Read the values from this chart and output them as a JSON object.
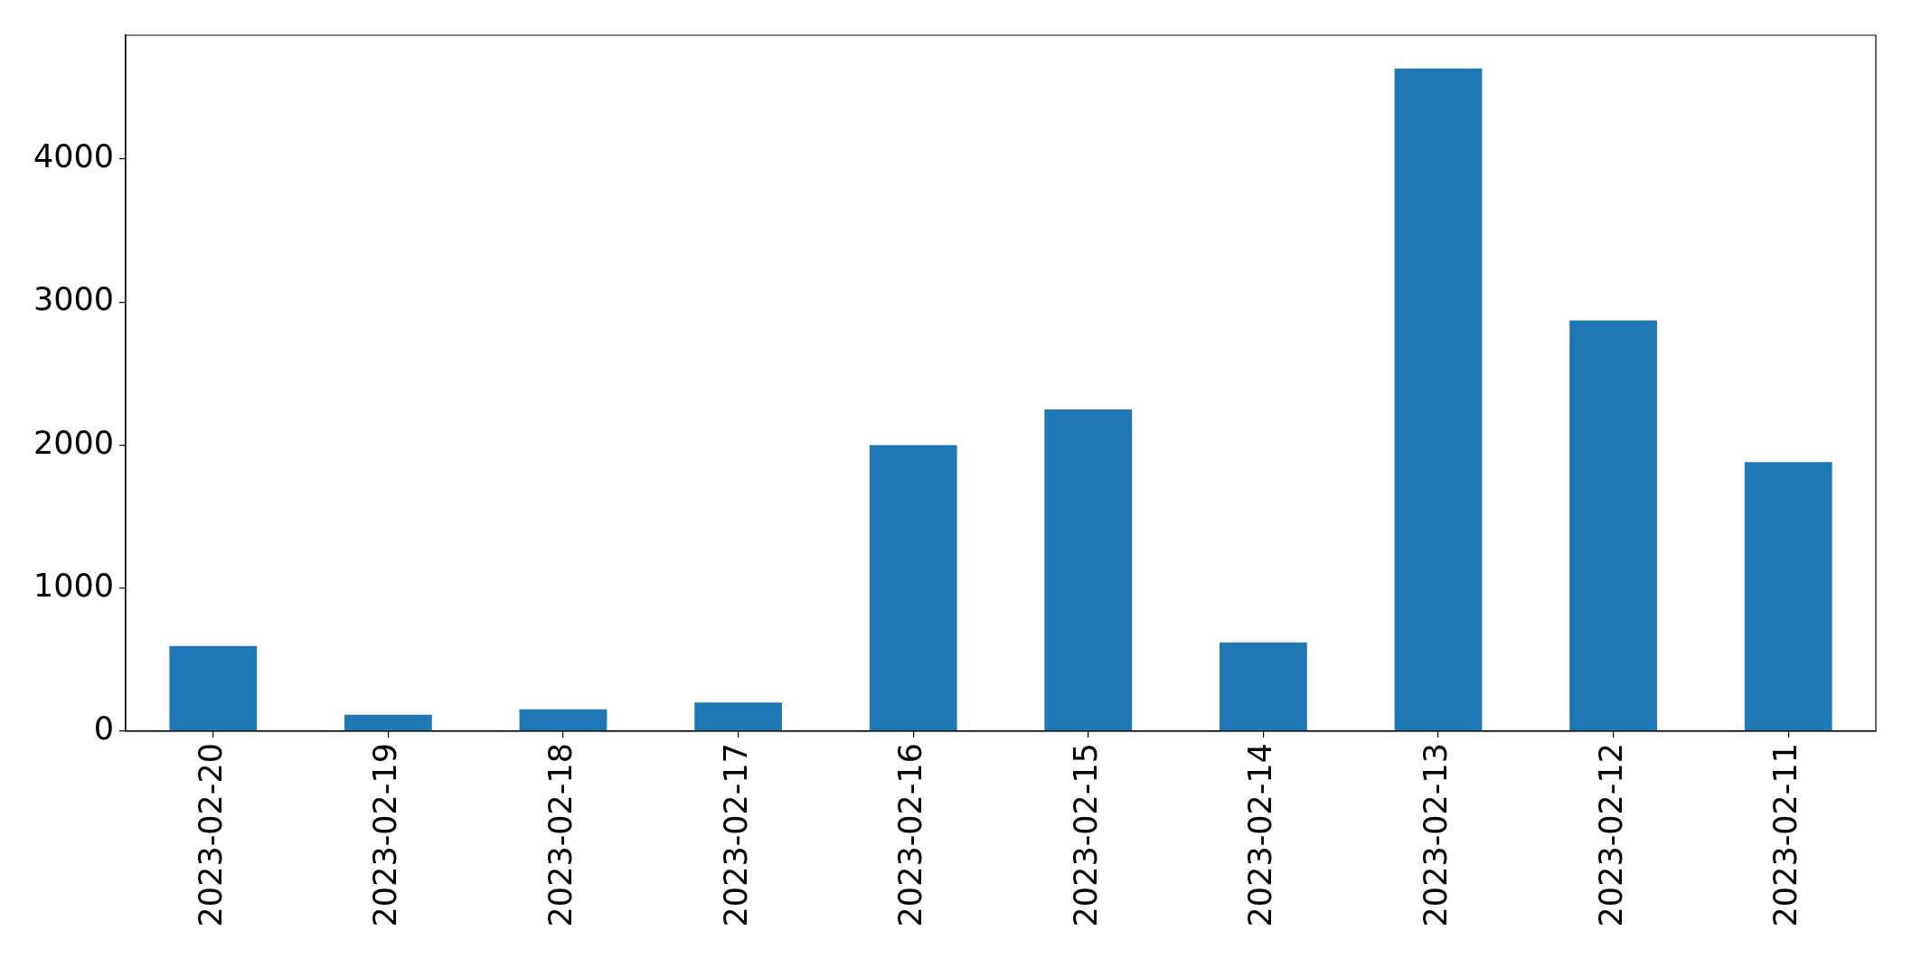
{
  "chart_data": {
    "type": "bar",
    "categories": [
      "2023-02-20",
      "2023-02-19",
      "2023-02-18",
      "2023-02-17",
      "2023-02-16",
      "2023-02-15",
      "2023-02-14",
      "2023-02-13",
      "2023-02-12",
      "2023-02-11"
    ],
    "values": [
      595,
      115,
      154,
      201,
      2000,
      2250,
      620,
      4633,
      2871,
      1882
    ],
    "color": "#1f77b4",
    "ylim": [
      0,
      4865
    ],
    "yticks": [
      0,
      1000,
      2000,
      3000,
      4000
    ]
  }
}
